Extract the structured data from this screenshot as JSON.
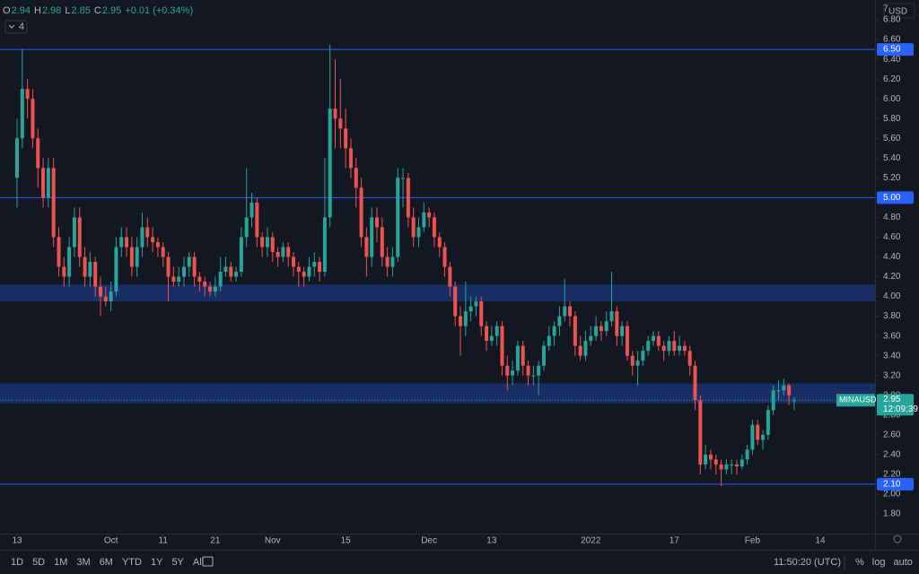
{
  "header": {
    "ohlc": [
      {
        "label": "O",
        "value": 2.94
      },
      {
        "label": "H",
        "value": 2.98
      },
      {
        "label": "L",
        "value": 2.85
      },
      {
        "label": "C",
        "value": 2.95
      }
    ],
    "change": "+0.01 (+0.34%)",
    "indicator_count": 4
  },
  "chart_data": {
    "type": "candlestick",
    "currency": "USD",
    "up_color": "#26a69a",
    "down_color": "#ef5350",
    "open": [
      5.2,
      5.6,
      6.1,
      6.0,
      5.6,
      5.3,
      5.0,
      5.3,
      4.6,
      4.3,
      4.2,
      4.5,
      4.8,
      4.4,
      4.2,
      4.35,
      4.1,
      4.0,
      3.95,
      4.05,
      4.5,
      4.6,
      4.5,
      4.3,
      4.5,
      4.7,
      4.6,
      4.55,
      4.5,
      4.4,
      4.2,
      4.15,
      4.2,
      4.3,
      4.4,
      4.2,
      4.15,
      4.1,
      4.05,
      4.1,
      4.25,
      4.3,
      4.2,
      4.25,
      4.6,
      4.8,
      4.95,
      4.6,
      4.5,
      4.6,
      4.45,
      4.4,
      4.5,
      4.4,
      4.3,
      4.25,
      4.2,
      4.3,
      4.35,
      4.25,
      4.8,
      5.9,
      5.8,
      5.7,
      5.5,
      5.3,
      5.1,
      4.6,
      4.4,
      4.8,
      4.7,
      4.4,
      4.3,
      4.4,
      5.2,
      5.2,
      4.8,
      4.6,
      4.7,
      4.85,
      4.8,
      4.6,
      4.5,
      4.3,
      4.1,
      3.8,
      3.7,
      3.85,
      3.9,
      3.95,
      3.7,
      3.55,
      3.6,
      3.7,
      3.3,
      3.2,
      3.25,
      3.5,
      3.3,
      3.2,
      3.2,
      3.3,
      3.5,
      3.6,
      3.7,
      3.8,
      3.9,
      3.8,
      3.5,
      3.4,
      3.55,
      3.6,
      3.7,
      3.65,
      3.75,
      3.85,
      3.6,
      3.7,
      3.4,
      3.3,
      3.35,
      3.45,
      3.55,
      3.6,
      3.5,
      3.45,
      3.55,
      3.45,
      3.5,
      3.45,
      3.3,
      2.95,
      2.3,
      2.4,
      2.35,
      2.3,
      2.25,
      2.3,
      2.3,
      2.28,
      2.35,
      2.45,
      2.7,
      2.55,
      2.6,
      2.85,
      3.05,
      3.05,
      3.1,
      2.94
    ],
    "high": [
      5.8,
      6.5,
      6.2,
      6.1,
      5.7,
      5.4,
      5.4,
      5.4,
      4.7,
      4.4,
      4.6,
      4.9,
      4.9,
      4.5,
      4.45,
      4.4,
      4.2,
      4.1,
      4.15,
      4.6,
      4.7,
      4.7,
      4.6,
      4.6,
      4.85,
      4.8,
      4.7,
      4.6,
      4.55,
      4.45,
      4.3,
      4.3,
      4.4,
      4.45,
      4.45,
      4.25,
      4.2,
      4.15,
      4.2,
      4.4,
      4.4,
      4.35,
      4.3,
      4.7,
      5.3,
      5.05,
      5.0,
      4.65,
      4.7,
      4.65,
      4.5,
      4.55,
      4.55,
      4.45,
      4.35,
      4.3,
      4.4,
      4.45,
      4.4,
      5.4,
      6.55,
      6.4,
      6.2,
      5.9,
      5.6,
      5.4,
      5.2,
      4.7,
      4.9,
      4.9,
      4.8,
      4.5,
      4.5,
      5.3,
      5.3,
      5.25,
      4.9,
      4.8,
      4.95,
      4.9,
      4.85,
      4.65,
      4.55,
      4.35,
      4.15,
      3.9,
      4.15,
      4.0,
      4.0,
      4.0,
      3.75,
      3.7,
      3.75,
      3.75,
      3.4,
      3.35,
      3.55,
      3.55,
      3.35,
      3.3,
      3.35,
      3.55,
      3.7,
      3.75,
      3.9,
      4.18,
      3.95,
      3.85,
      3.6,
      3.65,
      3.7,
      3.8,
      3.75,
      3.85,
      4.25,
      3.9,
      3.75,
      3.75,
      3.45,
      3.45,
      3.5,
      3.6,
      3.65,
      3.65,
      3.55,
      3.6,
      3.65,
      3.6,
      3.55,
      3.5,
      3.35,
      3.0,
      2.5,
      2.45,
      2.4,
      2.35,
      2.35,
      2.35,
      2.35,
      2.4,
      2.5,
      2.75,
      2.75,
      2.65,
      2.9,
      3.1,
      3.15,
      3.17,
      3.12,
      2.98
    ],
    "low": [
      4.9,
      5.5,
      5.8,
      5.5,
      5.1,
      4.9,
      4.9,
      4.5,
      4.2,
      4.1,
      4.1,
      4.4,
      4.3,
      4.1,
      4.1,
      4.0,
      3.8,
      3.9,
      3.85,
      4.0,
      4.4,
      4.4,
      4.2,
      4.2,
      4.4,
      4.5,
      4.45,
      4.4,
      4.3,
      3.95,
      4.1,
      4.1,
      4.1,
      4.2,
      4.1,
      4.05,
      4.0,
      4.0,
      4.0,
      4.05,
      4.2,
      4.15,
      4.15,
      4.2,
      4.5,
      4.7,
      4.5,
      4.4,
      4.4,
      4.35,
      4.3,
      4.35,
      4.3,
      4.2,
      4.1,
      4.1,
      4.15,
      4.2,
      4.15,
      4.2,
      4.7,
      5.5,
      5.5,
      5.3,
      5.2,
      4.9,
      4.5,
      4.2,
      4.3,
      4.55,
      4.3,
      4.2,
      4.2,
      4.35,
      4.9,
      4.7,
      4.5,
      4.5,
      4.65,
      4.7,
      4.5,
      4.4,
      4.2,
      4.0,
      3.7,
      3.4,
      3.6,
      3.75,
      3.8,
      3.6,
      3.45,
      3.5,
      3.5,
      3.2,
      3.05,
      3.1,
      3.2,
      3.2,
      3.1,
      3.1,
      3.0,
      3.25,
      3.45,
      3.5,
      3.6,
      3.75,
      3.7,
      3.4,
      3.35,
      3.35,
      3.5,
      3.55,
      3.55,
      3.6,
      3.7,
      3.5,
      3.5,
      3.35,
      3.2,
      3.1,
      3.3,
      3.4,
      3.5,
      3.45,
      3.35,
      3.4,
      3.4,
      3.4,
      3.4,
      3.2,
      2.85,
      2.2,
      2.25,
      2.25,
      2.2,
      2.08,
      2.2,
      2.2,
      2.2,
      2.25,
      2.3,
      2.4,
      2.5,
      2.45,
      2.55,
      2.8,
      2.95,
      3.0,
      2.9,
      2.85
    ],
    "close": [
      5.6,
      6.1,
      6.0,
      5.6,
      5.3,
      5.0,
      5.3,
      4.6,
      4.3,
      4.2,
      4.5,
      4.8,
      4.4,
      4.2,
      4.35,
      4.1,
      4.0,
      3.95,
      4.05,
      4.5,
      4.6,
      4.5,
      4.3,
      4.5,
      4.7,
      4.6,
      4.55,
      4.5,
      4.4,
      4.2,
      4.15,
      4.2,
      4.3,
      4.4,
      4.2,
      4.15,
      4.1,
      4.05,
      4.1,
      4.25,
      4.3,
      4.2,
      4.25,
      4.6,
      4.8,
      4.95,
      4.6,
      4.5,
      4.6,
      4.45,
      4.4,
      4.5,
      4.4,
      4.3,
      4.25,
      4.2,
      4.3,
      4.35,
      4.25,
      4.8,
      5.9,
      5.8,
      5.7,
      5.5,
      5.3,
      5.1,
      4.6,
      4.4,
      4.8,
      4.7,
      4.4,
      4.3,
      4.4,
      5.2,
      5.2,
      4.8,
      4.6,
      4.7,
      4.85,
      4.8,
      4.6,
      4.5,
      4.3,
      4.1,
      3.8,
      3.7,
      3.85,
      3.9,
      3.95,
      3.7,
      3.55,
      3.6,
      3.7,
      3.3,
      3.2,
      3.25,
      3.5,
      3.3,
      3.2,
      3.2,
      3.3,
      3.5,
      3.6,
      3.7,
      3.8,
      3.9,
      3.8,
      3.5,
      3.4,
      3.55,
      3.6,
      3.7,
      3.65,
      3.75,
      3.85,
      3.6,
      3.7,
      3.4,
      3.3,
      3.35,
      3.45,
      3.55,
      3.6,
      3.5,
      3.45,
      3.55,
      3.45,
      3.5,
      3.45,
      3.3,
      2.95,
      2.3,
      2.4,
      2.35,
      2.3,
      2.25,
      2.3,
      2.3,
      2.28,
      2.35,
      2.45,
      2.7,
      2.55,
      2.6,
      2.85,
      3.05,
      3.05,
      3.1,
      3.0,
      2.95
    ],
    "ylim": [
      1.6,
      7.0
    ],
    "yticks": [
      {
        "value": 1.8,
        "label": "1.80"
      },
      {
        "value": 2.0,
        "label": "2.00"
      },
      {
        "value": 2.2,
        "label": "2.20"
      },
      {
        "value": 2.4,
        "label": "2.40"
      },
      {
        "value": 2.6,
        "label": "2.60"
      },
      {
        "value": 2.8,
        "label": "2.80"
      },
      {
        "value": 3.0,
        "label": "3.00"
      },
      {
        "value": 3.2,
        "label": "3.20"
      },
      {
        "value": 3.4,
        "label": "3.40"
      },
      {
        "value": 3.6,
        "label": "3.60"
      },
      {
        "value": 3.8,
        "label": "3.80"
      },
      {
        "value": 4.0,
        "label": "4.00"
      },
      {
        "value": 4.2,
        "label": "4.20"
      },
      {
        "value": 4.4,
        "label": "4.40"
      },
      {
        "value": 4.6,
        "label": "4.60"
      },
      {
        "value": 4.8,
        "label": "4.80"
      },
      {
        "value": 5.0,
        "label": "5.00"
      },
      {
        "value": 5.2,
        "label": "5.20"
      },
      {
        "value": 5.4,
        "label": "5.40"
      },
      {
        "value": 5.6,
        "label": "5.60"
      },
      {
        "value": 5.8,
        "label": "5.80"
      },
      {
        "value": 6.0,
        "label": "6.00"
      },
      {
        "value": 6.2,
        "label": "6.20"
      },
      {
        "value": 6.4,
        "label": "6.40"
      },
      {
        "value": 6.6,
        "label": "6.60"
      },
      {
        "value": 6.8,
        "label": "6.80"
      },
      {
        "value": 7,
        "label": "7"
      }
    ],
    "xlim": [
      -3.27,
      164.5
    ],
    "xticks": [
      {
        "value": 0,
        "label": "13"
      },
      {
        "value": 18,
        "label": "Oct"
      },
      {
        "value": 28,
        "label": "11"
      },
      {
        "value": 38,
        "label": "21"
      },
      {
        "value": 49,
        "label": "Nov"
      },
      {
        "value": 63,
        "label": "15"
      },
      {
        "value": 79,
        "label": "Dec"
      },
      {
        "value": 91,
        "label": "13"
      },
      {
        "value": 110,
        "label": "2022"
      },
      {
        "value": 126,
        "label": "17"
      },
      {
        "value": 141,
        "label": "Feb"
      },
      {
        "value": 154,
        "label": "14"
      }
    ],
    "levels": [
      {
        "value": 6.5,
        "label": "6.50"
      },
      {
        "value": 5.0,
        "label": "5.00"
      },
      {
        "value": 2.1,
        "label": "2.10"
      }
    ],
    "zones": [
      [
        3.95,
        4.12
      ],
      [
        2.92,
        3.12
      ]
    ],
    "price_label": {
      "symbol": "MINAUSD",
      "value": 2.95,
      "countdown": "12:09:39"
    }
  },
  "toolbar": {
    "ranges": [
      "1D",
      "5D",
      "1M",
      "3M",
      "6M",
      "YTD",
      "1Y",
      "5Y",
      "All"
    ],
    "time": "11:50:20 (UTC)",
    "options": [
      "%",
      "log",
      "auto"
    ]
  }
}
